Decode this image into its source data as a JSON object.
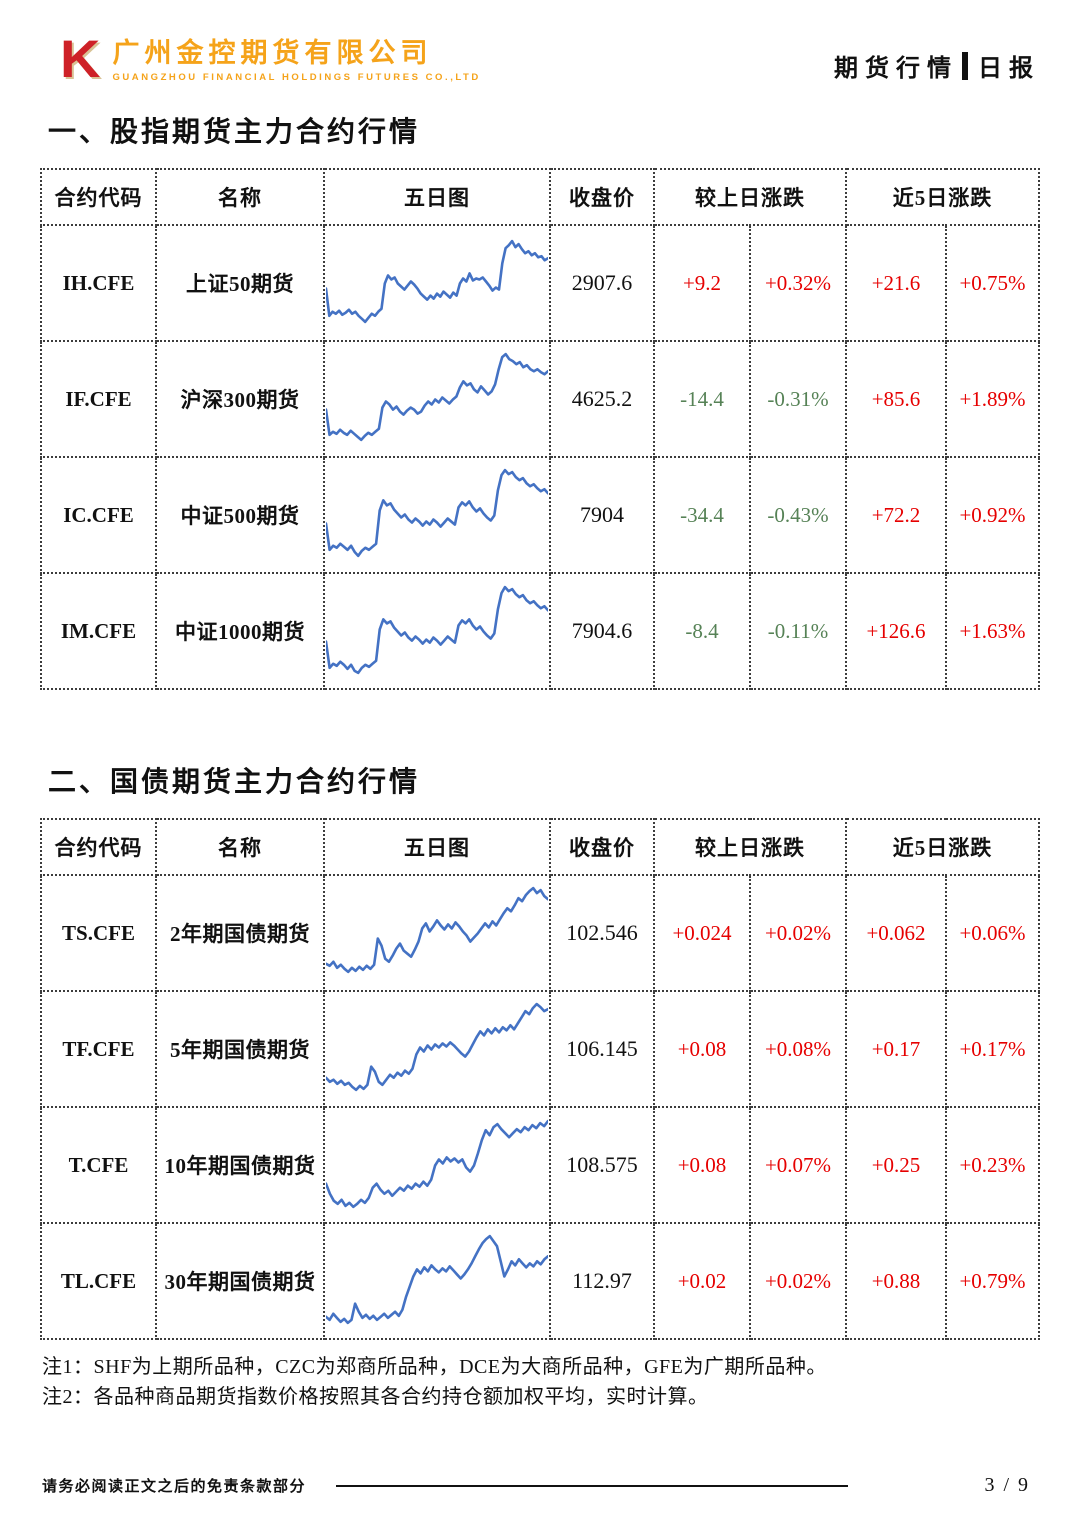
{
  "brand": {
    "logo_letter": "K",
    "company_cn": "广州金控期货有限公司",
    "company_en": "GUANGZHOU FINANCIAL HOLDINGS FUTURES CO.,LTD",
    "report_type": "期货行情",
    "report_period": "日报"
  },
  "colors": {
    "up": "#e60000",
    "down": "#568256",
    "spark": "#4472c4"
  },
  "sections": [
    {
      "title": "一、股指期货主力合约行情",
      "table": {
        "headers": {
          "code": "合约代码",
          "name": "名称",
          "chart": "五日图",
          "close": "收盘价",
          "day_change": "较上日涨跌",
          "five_day_change": "近5日涨跌"
        },
        "rows": [
          {
            "code": "IH.CFE",
            "name": "上证50期货",
            "close": "2907.6",
            "chg": "+9.2",
            "chg_pct": "+0.32%",
            "chg5": "+21.6",
            "chg5_pct": "+0.75%",
            "spark": [
              45,
              18,
              22,
              20,
              23,
              19,
              21,
              24,
              20,
              22,
              18,
              15,
              12,
              16,
              20,
              18,
              22,
              25,
              50,
              58,
              54,
              56,
              50,
              47,
              44,
              48,
              52,
              49,
              45,
              40,
              37,
              34,
              38,
              35,
              40,
              37,
              42,
              39,
              36,
              41,
              38,
              50,
              55,
              52,
              60,
              53,
              55,
              54,
              56,
              52,
              48,
              43,
              46,
              44,
              70,
              85,
              88,
              92,
              86,
              89,
              84,
              80,
              82,
              78,
              80,
              76,
              77,
              73,
              75
            ]
          },
          {
            "code": "IF.CFE",
            "name": "沪深300期货",
            "close": "4625.2",
            "chg": "-14.4",
            "chg_pct": "-0.31%",
            "chg5": "+85.6",
            "chg5_pct": "+1.89%",
            "spark": [
              40,
              15,
              18,
              16,
              20,
              17,
              15,
              19,
              16,
              13,
              10,
              14,
              17,
              15,
              18,
              21,
              42,
              48,
              45,
              40,
              43,
              38,
              35,
              39,
              42,
              40,
              36,
              38,
              44,
              48,
              45,
              50,
              47,
              52,
              49,
              46,
              50,
              53,
              62,
              68,
              64,
              66,
              60,
              57,
              63,
              59,
              55,
              58,
              65,
              80,
              92,
              95,
              90,
              88,
              85,
              87,
              82,
              84,
              80,
              78,
              80,
              77,
              75,
              78
            ]
          },
          {
            "code": "IC.CFE",
            "name": "中证500期货",
            "close": "7904",
            "chg": "-34.4",
            "chg_pct": "-0.43%",
            "chg5": "+72.2",
            "chg5_pct": "+0.92%",
            "spark": [
              42,
              16,
              20,
              18,
              22,
              19,
              16,
              20,
              14,
              10,
              15,
              18,
              16,
              19,
              22,
              55,
              65,
              60,
              62,
              56,
              52,
              48,
              51,
              46,
              43,
              47,
              44,
              40,
              44,
              41,
              46,
              43,
              39,
              43,
              47,
              44,
              41,
              58,
              63,
              60,
              64,
              58,
              54,
              57,
              52,
              48,
              45,
              50,
              75,
              90,
              95,
              91,
              93,
              88,
              85,
              87,
              82,
              79,
              81,
              77,
              74,
              76,
              72
            ]
          },
          {
            "code": "IM.CFE",
            "name": "中证1000期货",
            "close": "7904.6",
            "chg": "-8.4",
            "chg_pct": "-0.11%",
            "chg5": "+126.6",
            "chg5_pct": "+1.63%",
            "spark": [
              40,
              14,
              18,
              16,
              20,
              17,
              13,
              17,
              11,
              9,
              14,
              17,
              15,
              18,
              21,
              52,
              62,
              58,
              60,
              54,
              50,
              46,
              49,
              44,
              41,
              45,
              42,
              38,
              42,
              39,
              44,
              41,
              37,
              41,
              45,
              42,
              39,
              56,
              61,
              58,
              62,
              56,
              52,
              55,
              50,
              46,
              43,
              48,
              72,
              88,
              94,
              90,
              92,
              87,
              84,
              86,
              81,
              78,
              80,
              76,
              73,
              75,
              71
            ]
          }
        ]
      }
    },
    {
      "title": "二、国债期货主力合约行情",
      "table": {
        "headers": {
          "code": "合约代码",
          "name": "名称",
          "chart": "五日图",
          "close": "收盘价",
          "day_change": "较上日涨跌",
          "five_day_change": "近5日涨跌"
        },
        "rows": [
          {
            "code": "TS.CFE",
            "name": "2年期国债期货",
            "close": "102.546",
            "chg": "+0.024",
            "chg_pct": "+0.02%",
            "chg5": "+0.062",
            "chg5_pct": "+0.06%",
            "spark": [
              20,
              18,
              22,
              16,
              19,
              15,
              12,
              16,
              13,
              17,
              14,
              18,
              15,
              19,
              45,
              38,
              25,
              22,
              28,
              35,
              40,
              33,
              30,
              27,
              34,
              42,
              55,
              60,
              52,
              57,
              63,
              58,
              54,
              59,
              55,
              61,
              57,
              52,
              48,
              42,
              46,
              50,
              55,
              60,
              56,
              62,
              58,
              64,
              70,
              75,
              72,
              78,
              85,
              82,
              88,
              92,
              95,
              90,
              93,
              87,
              84
            ]
          },
          {
            "code": "TF.CFE",
            "name": "5年期国债期货",
            "close": "106.145",
            "chg": "+0.08",
            "chg_pct": "+0.08%",
            "chg5": "+0.17",
            "chg5_pct": "+0.17%",
            "spark": [
              22,
              18,
              20,
              16,
              19,
              15,
              17,
              13,
              10,
              14,
              11,
              15,
              33,
              28,
              18,
              15,
              20,
              25,
              22,
              27,
              24,
              29,
              26,
              31,
              45,
              52,
              48,
              54,
              50,
              55,
              52,
              56,
              53,
              57,
              54,
              50,
              46,
              43,
              48,
              55,
              62,
              68,
              64,
              70,
              66,
              71,
              67,
              72,
              69,
              74,
              70,
              76,
              82,
              88,
              85,
              91,
              95,
              92,
              88,
              90
            ]
          },
          {
            "code": "T.CFE",
            "name": "10年期国债期货",
            "close": "108.575",
            "chg": "+0.08",
            "chg_pct": "+0.07%",
            "chg5": "+0.25",
            "chg5_pct": "+0.23%",
            "spark": [
              32,
              22,
              15,
              12,
              16,
              10,
              13,
              9,
              12,
              16,
              13,
              18,
              28,
              32,
              26,
              22,
              25,
              20,
              24,
              28,
              25,
              30,
              27,
              32,
              29,
              34,
              30,
              36,
              50,
              56,
              52,
              58,
              54,
              57,
              53,
              56,
              48,
              44,
              50,
              62,
              75,
              85,
              80,
              88,
              91,
              86,
              82,
              78,
              82,
              86,
              83,
              88,
              85,
              90,
              87,
              92,
              89,
              94
            ]
          },
          {
            "code": "TL.CFE",
            "name": "30年期国债期货",
            "close": "112.97",
            "chg": "+0.02",
            "chg_pct": "+0.02%",
            "chg5": "+0.88",
            "chg5_pct": "+0.79%",
            "spark": [
              15,
              12,
              18,
              14,
              10,
              13,
              9,
              12,
              28,
              20,
              14,
              17,
              13,
              16,
              12,
              15,
              18,
              14,
              17,
              20,
              16,
              22,
              35,
              45,
              55,
              62,
              58,
              64,
              60,
              66,
              62,
              59,
              63,
              60,
              65,
              61,
              57,
              53,
              57,
              62,
              68,
              75,
              82,
              88,
              92,
              95,
              90,
              85,
              70,
              55,
              62,
              70,
              66,
              72,
              68,
              64,
              68,
              65,
              70,
              67,
              72,
              75
            ]
          }
        ]
      }
    }
  ],
  "notes": {
    "note1": "注1：SHF为上期所品种，CZC为郑商所品种，DCE为大商所品种，GFE为广期所品种。",
    "note2": "注2：各品种商品期货指数价格按照其各合约持仓额加权平均，实时计算。"
  },
  "footer": {
    "disclaimer": "请务必阅读正文之后的免责条款部分",
    "page": "3 / 9"
  }
}
